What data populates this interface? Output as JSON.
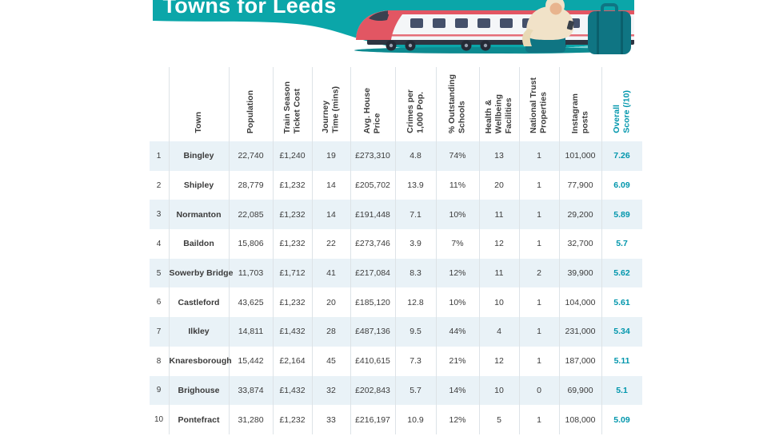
{
  "banner": {
    "title": "Towns for Leeds",
    "teal": "#0ba6a9",
    "light_teal": "#79d0d2",
    "ground_teal": "#0d8a90",
    "train_red": "#e25663",
    "train_body": "#f4f6f8",
    "train_dark": "#2e3542",
    "window_blue": "#44506a",
    "dark_teal": "#0f7583",
    "case_seam": "#0a5f6c",
    "cream": "#f1e2c8",
    "skin": "#e8b48e"
  },
  "colors": {
    "accent": "#0096ac",
    "row_alt_bg": "#e9f2f7"
  },
  "chart_data": {
    "type": "table",
    "title": "Towns for Leeds",
    "columns": [
      {
        "key": "rank",
        "label": ""
      },
      {
        "key": "town",
        "label": "Town"
      },
      {
        "key": "population",
        "label": "Population"
      },
      {
        "key": "ticket",
        "label": "Train Season\nTicket Cost"
      },
      {
        "key": "journey",
        "label": "Journey\nTime (mins)"
      },
      {
        "key": "house",
        "label": "Avg. House\nPrice"
      },
      {
        "key": "crimes",
        "label": "Crimes per\n1,000 Pop."
      },
      {
        "key": "schools",
        "label": "% Outstanding\nSchools"
      },
      {
        "key": "health",
        "label": "Health &\nWellbeing\nFacilities"
      },
      {
        "key": "trust",
        "label": "National Trust\nProperties"
      },
      {
        "key": "instagram",
        "label": "Instagram\nposts"
      },
      {
        "key": "score",
        "label": "Overall\nScore (/10)"
      }
    ],
    "rows": [
      {
        "rank": "1",
        "town": "Bingley",
        "population": "22,740",
        "ticket": "£1,240",
        "journey": "19",
        "house": "£273,310",
        "crimes": "4.8",
        "schools": "74%",
        "health": "13",
        "trust": "1",
        "instagram": "101,000",
        "score": "7.26"
      },
      {
        "rank": "2",
        "town": "Shipley",
        "population": "28,779",
        "ticket": "£1,232",
        "journey": "14",
        "house": "£205,702",
        "crimes": "13.9",
        "schools": "11%",
        "health": "20",
        "trust": "1",
        "instagram": "77,900",
        "score": "6.09"
      },
      {
        "rank": "3",
        "town": "Normanton",
        "population": "22,085",
        "ticket": "£1,232",
        "journey": "14",
        "house": "£191,448",
        "crimes": "7.1",
        "schools": "10%",
        "health": "11",
        "trust": "1",
        "instagram": "29,200",
        "score": "5.89"
      },
      {
        "rank": "4",
        "town": "Baildon",
        "population": "15,806",
        "ticket": "£1,232",
        "journey": "22",
        "house": "£273,746",
        "crimes": "3.9",
        "schools": "7%",
        "health": "12",
        "trust": "1",
        "instagram": "32,700",
        "score": "5.7"
      },
      {
        "rank": "5",
        "town": "Sowerby Bridge",
        "population": "11,703",
        "ticket": "£1,712",
        "journey": "41",
        "house": "£217,084",
        "crimes": "8.3",
        "schools": "12%",
        "health": "11",
        "trust": "2",
        "instagram": "39,900",
        "score": "5.62"
      },
      {
        "rank": "6",
        "town": "Castleford",
        "population": "43,625",
        "ticket": "£1,232",
        "journey": "20",
        "house": "£185,120",
        "crimes": "12.8",
        "schools": "10%",
        "health": "10",
        "trust": "1",
        "instagram": "104,000",
        "score": "5.61"
      },
      {
        "rank": "7",
        "town": "Ilkley",
        "population": "14,811",
        "ticket": "£1,432",
        "journey": "28",
        "house": "£487,136",
        "crimes": "9.5",
        "schools": "44%",
        "health": "4",
        "trust": "1",
        "instagram": "231,000",
        "score": "5.34"
      },
      {
        "rank": "8",
        "town": "Knaresborough",
        "population": "15,442",
        "ticket": "£2,164",
        "journey": "45",
        "house": "£410,615",
        "crimes": "7.3",
        "schools": "21%",
        "health": "12",
        "trust": "1",
        "instagram": "187,000",
        "score": "5.11"
      },
      {
        "rank": "9",
        "town": "Brighouse",
        "population": "33,874",
        "ticket": "£1,432",
        "journey": "32",
        "house": "£202,843",
        "crimes": "5.7",
        "schools": "14%",
        "health": "10",
        "trust": "0",
        "instagram": "69,900",
        "score": "5.1"
      },
      {
        "rank": "10",
        "town": "Pontefract",
        "population": "31,280",
        "ticket": "£1,232",
        "journey": "33",
        "house": "£216,197",
        "crimes": "10.9",
        "schools": "12%",
        "health": "5",
        "trust": "1",
        "instagram": "108,000",
        "score": "5.09"
      }
    ]
  }
}
